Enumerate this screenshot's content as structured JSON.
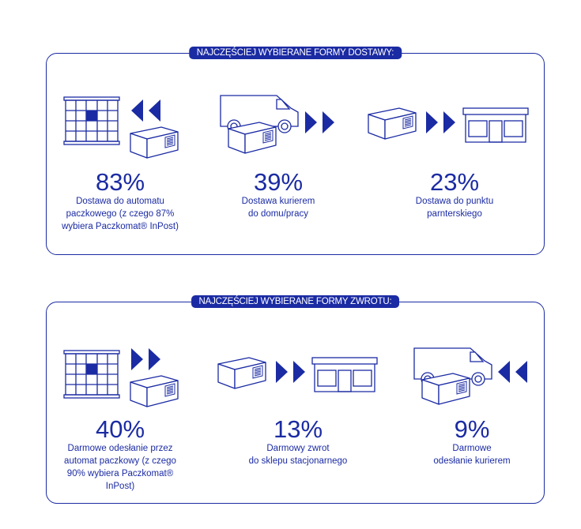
{
  "colors": {
    "brand": "#1b2ba3",
    "background": "#ffffff"
  },
  "delivery": {
    "title": "NAJCZĘŚCIEJ WYBIERANE FORMY DOSTAWY:",
    "items": [
      {
        "percent": "83%",
        "value": 83,
        "label_lines": [
          "Dostawa do automatu",
          "paczkowego (z czego 87%",
          "wybiera Paczkomat® InPost)"
        ],
        "icons": [
          "parcel-locker-icon",
          "arrows-left-icon",
          "package-icon"
        ]
      },
      {
        "percent": "39%",
        "value": 39,
        "label_lines": [
          "Dostawa kurierem",
          "do domu/pracy"
        ],
        "icons": [
          "delivery-van-icon",
          "package-icon",
          "arrows-right-icon"
        ]
      },
      {
        "percent": "23%",
        "value": 23,
        "label_lines": [
          "Dostawa do punktu",
          "parnterskiego"
        ],
        "icons": [
          "package-icon",
          "arrows-right-icon",
          "shop-icon"
        ]
      }
    ]
  },
  "returns": {
    "title": "NAJCZĘŚCIEJ WYBIERANE FORMY ZWROTU:",
    "items": [
      {
        "percent": "40%",
        "value": 40,
        "label_lines": [
          "Darmowe odesłanie przez",
          "automat paczkowy (z czego",
          "90% wybiera Paczkomat®",
          "InPost)"
        ],
        "icons": [
          "parcel-locker-icon",
          "arrows-right-icon",
          "package-icon"
        ]
      },
      {
        "percent": "13%",
        "value": 13,
        "label_lines": [
          "Darmowy zwrot",
          "do sklepu stacjonarnego"
        ],
        "icons": [
          "package-icon",
          "arrows-right-icon",
          "shop-icon"
        ]
      },
      {
        "percent": "9%",
        "value": 9,
        "label_lines": [
          "Darmowe",
          "odesłanie kurierem"
        ],
        "icons": [
          "delivery-van-icon",
          "package-icon",
          "arrows-left-icon"
        ]
      }
    ]
  }
}
